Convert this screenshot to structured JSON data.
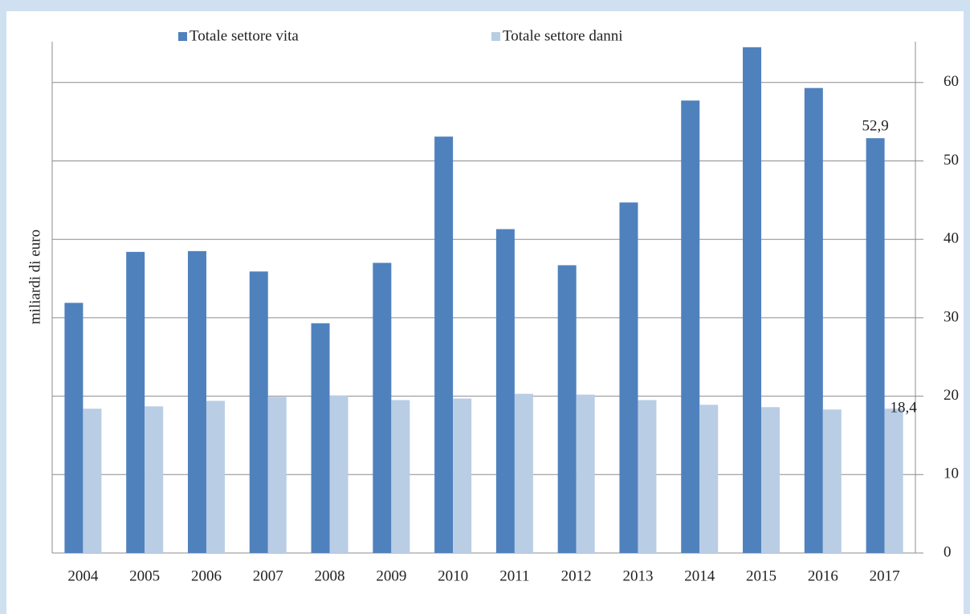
{
  "chart_data": {
    "type": "bar",
    "y_label": "miliardi di euro",
    "categories": [
      "2004",
      "2005",
      "2006",
      "2007",
      "2008",
      "2009",
      "2010",
      "2011",
      "2012",
      "2013",
      "2014",
      "2015",
      "2016",
      "2017"
    ],
    "series": [
      {
        "name": "Totale settore vita",
        "color": "#4f81bd",
        "values": [
          31.9,
          38.4,
          38.5,
          35.9,
          29.3,
          37.0,
          53.1,
          41.3,
          36.7,
          44.7,
          57.7,
          64.5,
          59.3,
          52.9
        ],
        "value_labels": [
          null,
          null,
          null,
          null,
          null,
          null,
          null,
          null,
          null,
          null,
          null,
          null,
          null,
          "52,9"
        ]
      },
      {
        "name": "Totale settore danni",
        "color": "#b9cde5",
        "values": [
          18.4,
          18.7,
          19.4,
          19.9,
          20.1,
          19.5,
          19.7,
          20.3,
          20.2,
          19.5,
          18.9,
          18.6,
          18.3,
          18.4
        ],
        "value_labels": [
          null,
          null,
          null,
          null,
          null,
          null,
          null,
          null,
          null,
          null,
          null,
          null,
          null,
          "18,4"
        ]
      }
    ],
    "ylim": [
      0,
      65.2
    ],
    "yticks": [
      0,
      10,
      20,
      30,
      40,
      50,
      60
    ],
    "y_axis_side": "right",
    "grid": true,
    "legend": "top"
  }
}
